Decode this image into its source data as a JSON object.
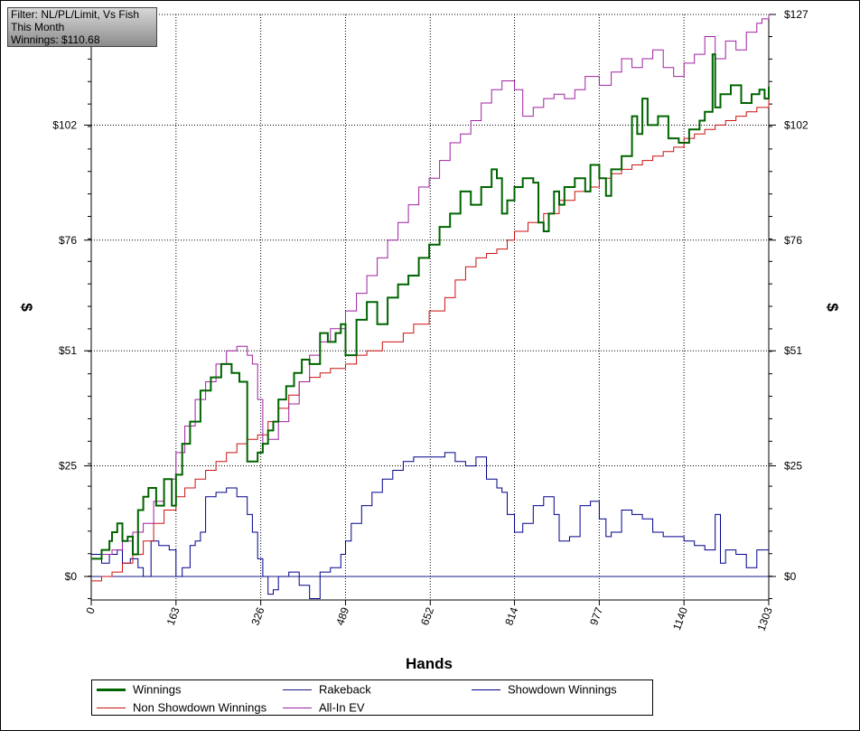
{
  "filter_box": {
    "line1": "Filter: NL/PL/Limit, Vs Fish",
    "line2": "This Month",
    "line3": "Winnings: $110.68"
  },
  "chart_data": {
    "type": "line",
    "xlabel": "Hands",
    "ylabel_left": "$",
    "ylabel_right": "$",
    "x_ticks": [
      "0",
      "163",
      "326",
      "489",
      "652",
      "814",
      "977",
      "1140",
      "1303"
    ],
    "y_ticks": [
      "$0",
      "$25",
      "$51",
      "$76",
      "$102",
      "$127"
    ],
    "xlim": [
      0,
      1303
    ],
    "ylim": [
      -5,
      127
    ],
    "grid": true,
    "legend_position": "bottom",
    "series": [
      {
        "name": "Winnings",
        "color": "#006400",
        "x": [
          0,
          20,
          35,
          40,
          50,
          60,
          70,
          80,
          90,
          100,
          110,
          125,
          140,
          155,
          163,
          175,
          190,
          210,
          230,
          250,
          270,
          285,
          300,
          320,
          330,
          340,
          350,
          360,
          375,
          390,
          405,
          420,
          440,
          455,
          470,
          480,
          489,
          510,
          530,
          550,
          570,
          590,
          610,
          630,
          650,
          670,
          690,
          710,
          730,
          750,
          770,
          780,
          790,
          800,
          814,
          830,
          850,
          860,
          870,
          880,
          890,
          900,
          910,
          930,
          950,
          960,
          977,
          990,
          1000,
          1020,
          1040,
          1050,
          1060,
          1070,
          1090,
          1110,
          1130,
          1150,
          1170,
          1180,
          1195,
          1200,
          1210,
          1230,
          1250,
          1270,
          1285,
          1295,
          1303
        ],
        "values": [
          4,
          6,
          8,
          10,
          12,
          8,
          9,
          5,
          15,
          18,
          20,
          16,
          22,
          16,
          23,
          30,
          35,
          42,
          45,
          48,
          46,
          44,
          26,
          28,
          30,
          33,
          35,
          40,
          43,
          46,
          49,
          48,
          55,
          53,
          55,
          57,
          50,
          58,
          62,
          57,
          63,
          66,
          68,
          72,
          75,
          79,
          82,
          87,
          84,
          88,
          92,
          90,
          82,
          85,
          88,
          90,
          89,
          80,
          78,
          82,
          87,
          84,
          88,
          90,
          87,
          93,
          90,
          86,
          92,
          95,
          104,
          100,
          108,
          102,
          104,
          99,
          98,
          101,
          103,
          105,
          118,
          106,
          109,
          111,
          107,
          109,
          110,
          108,
          110.68
        ]
      },
      {
        "name": "Rakeback",
        "color": "#1a1a8c",
        "x": [
          0,
          1303
        ],
        "values": [
          0,
          0
        ]
      },
      {
        "name": "Showdown Winnings",
        "color": "#00008b",
        "x": [
          0,
          20,
          35,
          50,
          60,
          75,
          90,
          100,
          115,
          130,
          150,
          163,
          175,
          190,
          200,
          210,
          220,
          240,
          260,
          280,
          300,
          310,
          320,
          330,
          340,
          350,
          360,
          380,
          400,
          420,
          440,
          460,
          480,
          489,
          500,
          520,
          540,
          560,
          580,
          600,
          620,
          640,
          660,
          680,
          700,
          720,
          740,
          760,
          780,
          790,
          800,
          814,
          830,
          850,
          870,
          890,
          900,
          920,
          940,
          960,
          977,
          990,
          1000,
          1020,
          1040,
          1060,
          1080,
          1100,
          1120,
          1140,
          1160,
          1180,
          1200,
          1210,
          1220,
          1240,
          1260,
          1280,
          1303
        ],
        "values": [
          5,
          3,
          5,
          6,
          3,
          4,
          2,
          0,
          8,
          7,
          6,
          0,
          2,
          7,
          8,
          10,
          18,
          19,
          20,
          18,
          14,
          10,
          4,
          0,
          -4,
          -3,
          0,
          1,
          -2,
          -5,
          1,
          2,
          5,
          8,
          12,
          16,
          19,
          22,
          24,
          26,
          27,
          27,
          27,
          28,
          26,
          25,
          27,
          22,
          20,
          19,
          14,
          10,
          12,
          16,
          18,
          14,
          8,
          9,
          16,
          17,
          13,
          9,
          10,
          15,
          14,
          13,
          10,
          9,
          9,
          8,
          7,
          6,
          14,
          3,
          6,
          5,
          2,
          6,
          6
        ]
      },
      {
        "name": "Non Showdown Winnings",
        "color": "#cc1111",
        "x": [
          0,
          20,
          40,
          60,
          80,
          100,
          120,
          140,
          163,
          180,
          200,
          220,
          240,
          260,
          280,
          300,
          320,
          340,
          360,
          380,
          400,
          420,
          440,
          460,
          489,
          510,
          530,
          560,
          600,
          620,
          650,
          680,
          700,
          720,
          740,
          760,
          780,
          800,
          814,
          840,
          870,
          900,
          930,
          960,
          977,
          1000,
          1020,
          1040,
          1060,
          1080,
          1100,
          1120,
          1140,
          1160,
          1180,
          1200,
          1220,
          1240,
          1260,
          1280,
          1303
        ],
        "values": [
          -1,
          0,
          1,
          3,
          5,
          8,
          12,
          15,
          18,
          20,
          22,
          24,
          26,
          28,
          30,
          31,
          32,
          35,
          38,
          41,
          44,
          45,
          46,
          47,
          48,
          50,
          51,
          53,
          55,
          57,
          60,
          63,
          67,
          70,
          72,
          73,
          74,
          76,
          78,
          80,
          82,
          85,
          87,
          88,
          90,
          91,
          92,
          93,
          94,
          95,
          96,
          97,
          99,
          100,
          101,
          102,
          103,
          104,
          105,
          106,
          108
        ]
      },
      {
        "name": "All-In EV",
        "color": "#a020a0",
        "x": [
          0,
          20,
          40,
          60,
          80,
          100,
          120,
          140,
          163,
          180,
          200,
          220,
          240,
          260,
          280,
          300,
          310,
          320,
          330,
          340,
          360,
          380,
          400,
          420,
          440,
          460,
          489,
          510,
          530,
          550,
          570,
          590,
          610,
          630,
          650,
          670,
          690,
          710,
          730,
          750,
          770,
          790,
          814,
          830,
          850,
          870,
          890,
          910,
          930,
          950,
          977,
          1000,
          1020,
          1040,
          1060,
          1080,
          1100,
          1120,
          1140,
          1160,
          1180,
          1200,
          1220,
          1240,
          1260,
          1280,
          1290,
          1303
        ],
        "values": [
          4,
          5,
          6,
          8,
          10,
          12,
          17,
          22,
          28,
          34,
          40,
          44,
          48,
          51,
          52,
          50,
          48,
          40,
          30,
          31,
          35,
          39,
          44,
          50,
          53,
          56,
          60,
          64,
          68,
          72,
          76,
          80,
          84,
          88,
          90,
          94,
          98,
          100,
          103,
          107,
          110,
          112,
          110,
          104,
          106,
          108,
          109,
          108,
          110,
          113,
          111,
          114,
          117,
          115,
          117,
          119,
          115,
          113,
          116,
          118,
          122,
          117,
          121,
          119,
          123,
          125,
          126,
          127
        ]
      }
    ]
  }
}
